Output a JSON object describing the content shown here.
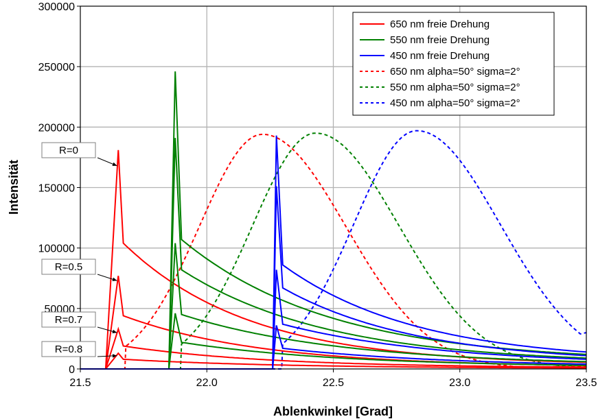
{
  "chart_data": {
    "type": "line",
    "title": "",
    "xlabel": "Ablenkwinkel [Grad]",
    "ylabel": "Intensität",
    "xlim": [
      21.5,
      23.5
    ],
    "ylim": [
      0,
      300000
    ],
    "x_ticks": [
      21.5,
      22.0,
      22.5,
      23.0,
      23.5
    ],
    "x_tick_labels": [
      "21.5",
      "22.0",
      "22.5",
      "23.0",
      "23.5"
    ],
    "y_ticks": [
      0,
      50000,
      100000,
      150000,
      200000,
      250000,
      300000
    ],
    "y_tick_labels": [
      "0",
      "50000",
      "100000",
      "150000",
      "200000",
      "250000",
      "300000"
    ],
    "grid": true,
    "legend_position": "top-right",
    "legend": [
      {
        "label": "650 nm freie Drehung",
        "color": "#ff0000",
        "style": "solid"
      },
      {
        "label": "550 nm freie Drehung",
        "color": "#008000",
        "style": "solid"
      },
      {
        "label": "450 nm freie Drehung",
        "color": "#0000ff",
        "style": "solid"
      },
      {
        "label": "650 nm alpha=50° sigma=2°",
        "color": "#ff0000",
        "style": "dotted"
      },
      {
        "label": "550 nm alpha=50° sigma=2°",
        "color": "#008000",
        "style": "dotted"
      },
      {
        "label": "450 nm alpha=50° sigma=2°",
        "color": "#0000ff",
        "style": "dotted"
      }
    ],
    "free_rotation": [
      {
        "wavelength": "650 nm",
        "color": "#ff0000",
        "onset": 21.6,
        "peak_x": 21.65,
        "after_x": 21.67,
        "curves": [
          {
            "R": "R=0",
            "peak": 181000,
            "after": 104000,
            "tail_end": 5500
          },
          {
            "R": "R=0.5",
            "peak": 77000,
            "after": 44000,
            "tail_end": 3000
          },
          {
            "R": "R=0.7",
            "peak": 33000,
            "after": 19000,
            "tail_end": 1500
          },
          {
            "R": "R=0.8",
            "peak": 13000,
            "after": 8000,
            "tail_end": 800
          }
        ]
      },
      {
        "wavelength": "550 nm",
        "color": "#008000",
        "onset": 21.85,
        "peak_x": 21.875,
        "after_x": 21.9,
        "curves": [
          {
            "R": "R=0",
            "peak": 246000,
            "after": 107000,
            "tail_end": 12000
          },
          {
            "R": "R=0.5",
            "peak": 191000,
            "after": 82000,
            "tail_end": 9000
          },
          {
            "R": "R=0.7",
            "peak": 104000,
            "after": 45000,
            "tail_end": 6000
          },
          {
            "R": "R=0.8",
            "peak": 46000,
            "after": 22000,
            "tail_end": 3000
          }
        ]
      },
      {
        "wavelength": "450 nm",
        "color": "#0000ff",
        "onset": 22.26,
        "peak_x": 22.275,
        "after_x": 22.3,
        "curves": [
          {
            "R": "R=0",
            "peak": 193000,
            "after": 86000,
            "tail_end": 14000
          },
          {
            "R": "R=0.5",
            "peak": 151000,
            "after": 67000,
            "tail_end": 11000
          },
          {
            "R": "R=0.7",
            "peak": 82000,
            "after": 37000,
            "tail_end": 8000
          },
          {
            "R": "R=0.8",
            "peak": 36000,
            "after": 17000,
            "tail_end": 4000
          }
        ]
      }
    ],
    "distributed": [
      {
        "wavelength": "650 nm",
        "color": "#ff0000",
        "onset": 21.68,
        "peak_x": 22.22,
        "peak": 194000,
        "sigma_left": 0.25,
        "sigma_right": 0.33,
        "tail_end": 2000
      },
      {
        "wavelength": "550 nm",
        "color": "#008000",
        "onset": 21.9,
        "peak_x": 22.43,
        "peak": 195000,
        "sigma_left": 0.25,
        "sigma_right": 0.33,
        "tail_end": 3000
      },
      {
        "wavelength": "450 nm",
        "color": "#0000ff",
        "onset": 22.3,
        "peak_x": 22.83,
        "peak": 197000,
        "sigma_left": 0.25,
        "sigma_right": 0.33,
        "tail_end": 30000
      }
    ],
    "annotations": [
      {
        "label": "R=0",
        "target_x": 21.645,
        "target_y": 168000
      },
      {
        "label": "R=0.5",
        "target_x": 21.645,
        "target_y": 73000
      },
      {
        "label": "R=0.7",
        "target_x": 21.645,
        "target_y": 30000
      },
      {
        "label": "R=0.8",
        "target_x": 21.645,
        "target_y": 11000
      }
    ]
  }
}
